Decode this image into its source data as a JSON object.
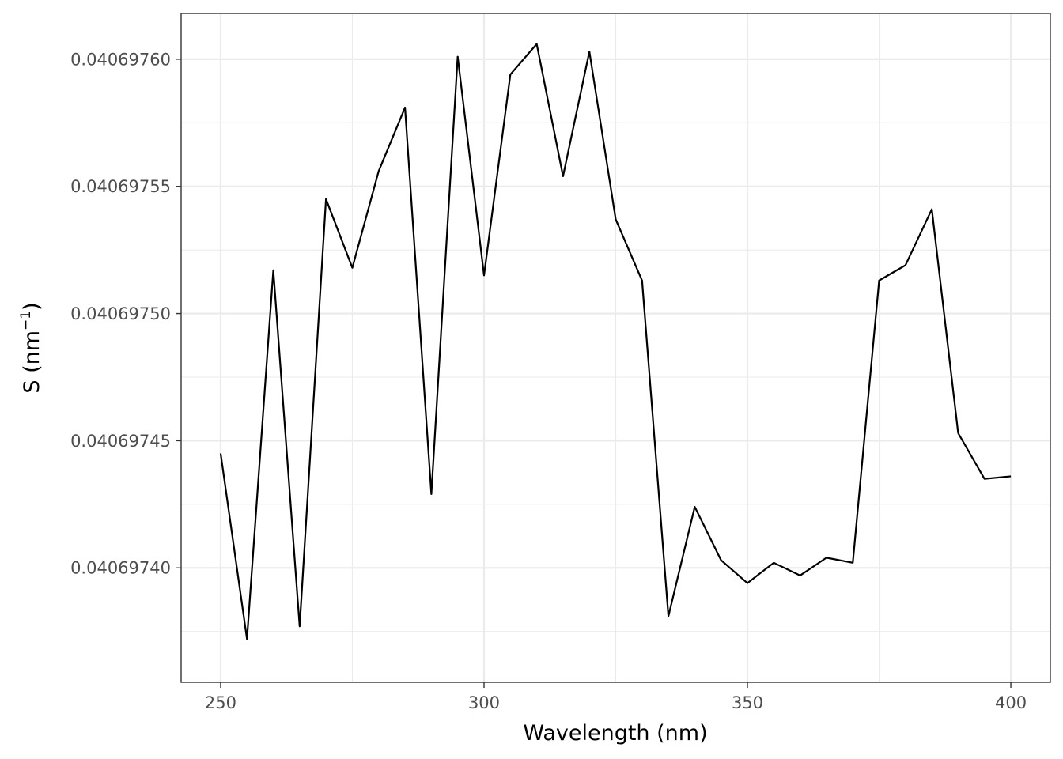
{
  "chart_data": {
    "type": "line",
    "title": "",
    "xlabel": "Wavelength (nm)",
    "ylabel": {
      "main": "S (nm",
      "superscript": "−1",
      "close": ")"
    },
    "xlim": [
      242.5,
      407.5
    ],
    "ylim": [
      0.040697355,
      0.040697618
    ],
    "x_ticks": [
      250,
      300,
      350,
      400
    ],
    "x_tick_labels": [
      "250",
      "300",
      "350",
      "400"
    ],
    "y_ticks": [
      0.0406974,
      0.04069745,
      0.0406975,
      0.04069755,
      0.0406976
    ],
    "y_tick_labels": [
      "0.04069740",
      "0.04069745",
      "0.04069750",
      "0.04069755",
      "0.04069760"
    ],
    "grid": true,
    "legend": "none",
    "colors": {
      "line": "#000000",
      "grid": "#ebebeb",
      "panel_border": "#333333",
      "tick_text": "#4d4d4d"
    },
    "series": [
      {
        "x": [
          250,
          255,
          260,
          265,
          270,
          275,
          280,
          285,
          290,
          295,
          300,
          305,
          310,
          315,
          320,
          325,
          330,
          335,
          340,
          345,
          350,
          355,
          360,
          365,
          370,
          375,
          380,
          385,
          390,
          395,
          400
        ],
        "y": [
          0.040697445,
          0.040697372,
          0.040697517,
          0.040697377,
          0.040697545,
          0.040697518,
          0.040697556,
          0.040697581,
          0.040697429,
          0.040697601,
          0.040697515,
          0.040697594,
          0.040697606,
          0.040697554,
          0.040697603,
          0.040697537,
          0.040697513,
          0.040697381,
          0.040697424,
          0.040697403,
          0.040697394,
          0.040697402,
          0.040697397,
          0.040697404,
          0.040697402,
          0.040697513,
          0.040697519,
          0.040697541,
          0.040697453,
          0.040697435,
          0.040697436
        ]
      }
    ]
  }
}
